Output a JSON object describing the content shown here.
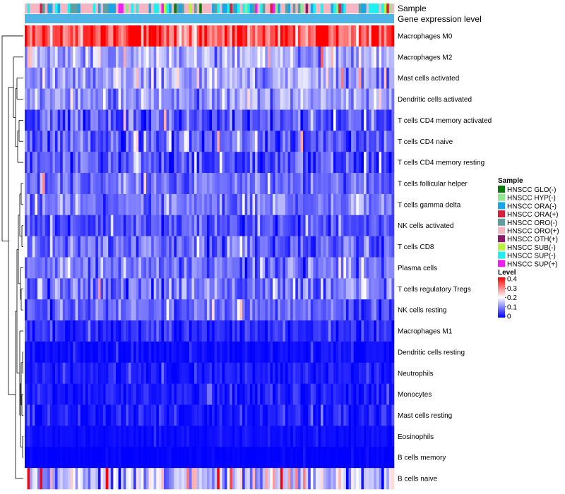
{
  "chart_data": {
    "type": "heatmap",
    "annotation_tracks": [
      "Sample",
      "Gene expression level"
    ],
    "rows": [
      {
        "label": "Macrophages M0",
        "mean": 0.33,
        "spread": 0.11
      },
      {
        "label": "Macrophages M2",
        "mean": 0.14,
        "spread": 0.07
      },
      {
        "label": "Mast cells activated",
        "mean": 0.13,
        "spread": 0.07
      },
      {
        "label": "Dendritic cells activated",
        "mean": 0.12,
        "spread": 0.06
      },
      {
        "label": "T cells CD4 memory activated",
        "mean": 0.07,
        "spread": 0.07
      },
      {
        "label": "T cells CD4 naive",
        "mean": 0.07,
        "spread": 0.07
      },
      {
        "label": "T cells CD4 memory resting",
        "mean": 0.06,
        "spread": 0.06
      },
      {
        "label": "T cells follicular helper",
        "mean": 0.08,
        "spread": 0.05
      },
      {
        "label": "T cells gamma delta",
        "mean": 0.09,
        "spread": 0.05
      },
      {
        "label": "NK cells activated",
        "mean": 0.06,
        "spread": 0.05
      },
      {
        "label": "T cells CD8",
        "mean": 0.08,
        "spread": 0.06
      },
      {
        "label": "Plasma cells",
        "mean": 0.09,
        "spread": 0.06
      },
      {
        "label": "T cells regulatory  Tregs",
        "mean": 0.09,
        "spread": 0.07
      },
      {
        "label": "NK cells resting",
        "mean": 0.07,
        "spread": 0.05
      },
      {
        "label": "Macrophages M1",
        "mean": 0.03,
        "spread": 0.04
      },
      {
        "label": "Dendritic cells resting",
        "mean": 0.01,
        "spread": 0.02
      },
      {
        "label": "Neutrophils",
        "mean": 0.02,
        "spread": 0.03
      },
      {
        "label": "Monocytes",
        "mean": 0.02,
        "spread": 0.03
      },
      {
        "label": "Mast cells resting",
        "mean": 0.02,
        "spread": 0.03
      },
      {
        "label": "Eosinophils",
        "mean": 0.01,
        "spread": 0.01
      },
      {
        "label": "B cells memory",
        "mean": 0.0,
        "spread": 0.01
      },
      {
        "label": "B cells naive",
        "mean": 0.15,
        "spread": 0.12
      }
    ],
    "n_samples": 146,
    "sample_legend": {
      "title": "Sample",
      "entries": [
        {
          "label": "HNSCC GLO(-)",
          "color": "#0a7a0a"
        },
        {
          "label": "HNSCC HYP(-)",
          "color": "#90e890"
        },
        {
          "label": "HNSCC ORA(-)",
          "color": "#1aa6e6"
        },
        {
          "label": "HNSCC ORA(+)",
          "color": "#d81f3c"
        },
        {
          "label": "HNSCC ORO(-)",
          "color": "#5f9ea0"
        },
        {
          "label": "HNSCC ORO(+)",
          "color": "#f4b6c2"
        },
        {
          "label": "HNSCC OTH(+)",
          "color": "#8b1a6b"
        },
        {
          "label": "HNSCC SUB(-)",
          "color": "#b6f23c"
        },
        {
          "label": "HNSCC SUP(-)",
          "color": "#1ef0f0"
        },
        {
          "label": "HNSCC SUP(+)",
          "color": "#f01ef0"
        }
      ]
    },
    "level_legend": {
      "title": "Level",
      "ticks": [
        "0.4",
        "0.3",
        "0.2",
        "0.1",
        "0"
      ],
      "range": [
        0,
        0.4
      ],
      "low_color": "#0000ff",
      "mid_color": "#ffffff",
      "high_color": "#ff0000"
    },
    "gene_expression_level_color": "#4fb5e6"
  }
}
